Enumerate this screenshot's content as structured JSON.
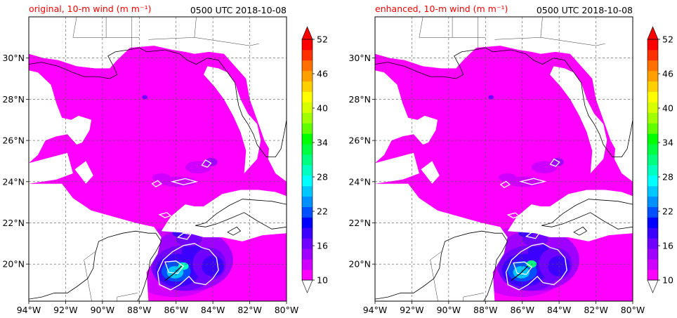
{
  "chart_data": [
    {
      "type": "heatmap",
      "title": "original, 10-m wind (m m⁻¹)",
      "time_label": "0500 UTC 2018-10-08",
      "x_ticks": [
        "94°W",
        "92°W",
        "90°W",
        "88°W",
        "86°W",
        "84°W",
        "82°W",
        "80°W"
      ],
      "x_tick_values": [
        -94,
        -92,
        -90,
        -88,
        -86,
        -84,
        -82,
        -80
      ],
      "y_ticks": [
        "20°N",
        "22°N",
        "24°N",
        "26°N",
        "28°N",
        "30°N"
      ],
      "y_tick_values": [
        20,
        22,
        24,
        26,
        28,
        30
      ],
      "xlim": [
        -94,
        -80
      ],
      "ylim": [
        18.2,
        32
      ],
      "grid": true,
      "colorbar": {
        "ticks": [
          "52",
          "46",
          "40",
          "34",
          "28",
          "22",
          "16",
          "10"
        ],
        "tick_values": [
          52,
          46,
          40,
          34,
          28,
          22,
          16,
          10
        ],
        "range": [
          10,
          52
        ],
        "extend": "both"
      },
      "storm_center": {
        "lon": -85.6,
        "lat": 19.9,
        "peak_wind": 30
      }
    },
    {
      "type": "heatmap",
      "title": "enhanced, 10-m wind (m m⁻¹)",
      "time_label": "0500 UTC 2018-10-08",
      "x_ticks": [
        "94°W",
        "92°W",
        "90°W",
        "88°W",
        "86°W",
        "84°W",
        "82°W",
        "80°W"
      ],
      "x_tick_values": [
        -94,
        -92,
        -90,
        -88,
        -86,
        -84,
        -82,
        -80
      ],
      "y_ticks": [
        "20°N",
        "22°N",
        "24°N",
        "26°N",
        "28°N",
        "30°N"
      ],
      "y_tick_values": [
        20,
        22,
        24,
        26,
        28,
        30
      ],
      "xlim": [
        -94,
        -80
      ],
      "ylim": [
        18.2,
        32
      ],
      "grid": true,
      "colorbar": {
        "ticks": [
          "52",
          "46",
          "40",
          "34",
          "28",
          "22",
          "16",
          "10"
        ],
        "tick_values": [
          52,
          46,
          40,
          34,
          28,
          22,
          16,
          10
        ],
        "range": [
          10,
          52
        ],
        "extend": "both"
      },
      "storm_center": {
        "lon": -85.5,
        "lat": 20.0,
        "peak_wind": 31
      }
    }
  ],
  "colors": {
    "wind_levels": [
      "#ff00ff",
      "#d000ff",
      "#a000ff",
      "#7000ff",
      "#3c00ff",
      "#0000ff",
      "#0050ff",
      "#0090ff",
      "#00c8ff",
      "#00ffff",
      "#00ffc0",
      "#00ff80",
      "#00ff40",
      "#00ff00",
      "#60ff00",
      "#a0ff00",
      "#d8ff00",
      "#ffff00",
      "#ffd000",
      "#ffa000",
      "#ff7000",
      "#ff3000",
      "#ff0000"
    ],
    "under": "#ffffff",
    "over": "#ff0000",
    "contour": "#ffffff",
    "coastline": "#000000"
  }
}
